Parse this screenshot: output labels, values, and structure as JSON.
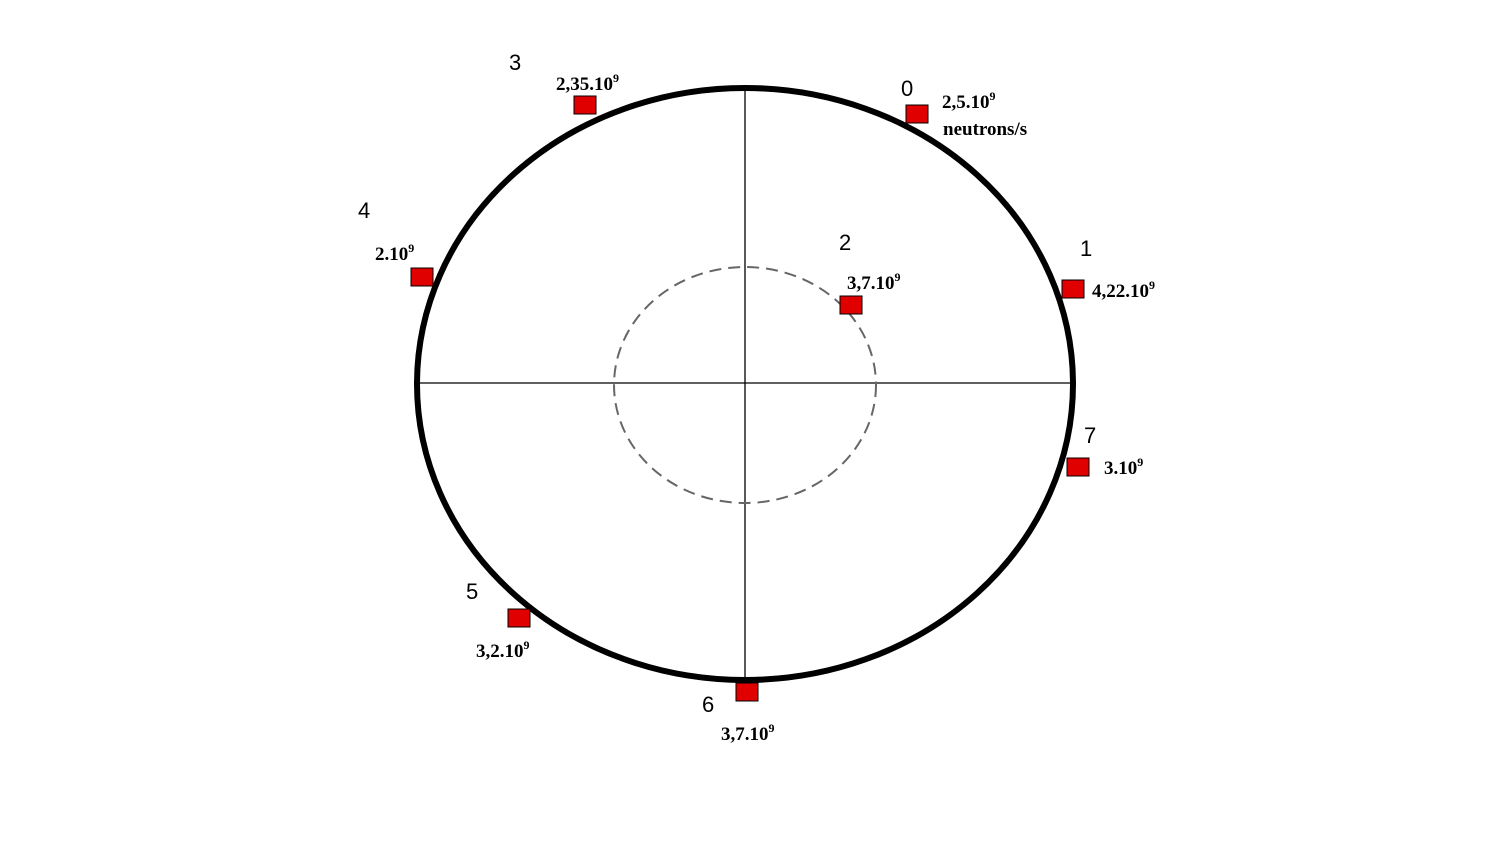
{
  "colors": {
    "source_fill": "#e00000",
    "source_stroke": "#000000",
    "ring": "#000000",
    "axes": "#000000",
    "inner_circle": "#666666"
  },
  "sources": [
    {
      "index": "0",
      "mantissa": "2,5.10",
      "exponent": "9",
      "unit": "neutrons/s"
    },
    {
      "index": "1",
      "mantissa": "4,22.10",
      "exponent": "9"
    },
    {
      "index": "2",
      "mantissa": "3,7.10",
      "exponent": "9"
    },
    {
      "index": "3",
      "mantissa": "2,35.10",
      "exponent": "9"
    },
    {
      "index": "4",
      "mantissa": "2.10",
      "exponent": "9"
    },
    {
      "index": "5",
      "mantissa": "3,2.10",
      "exponent": "9"
    },
    {
      "index": "6",
      "mantissa": "3,7.10",
      "exponent": "9"
    },
    {
      "index": "7",
      "mantissa": "3.10",
      "exponent": "9"
    }
  ]
}
